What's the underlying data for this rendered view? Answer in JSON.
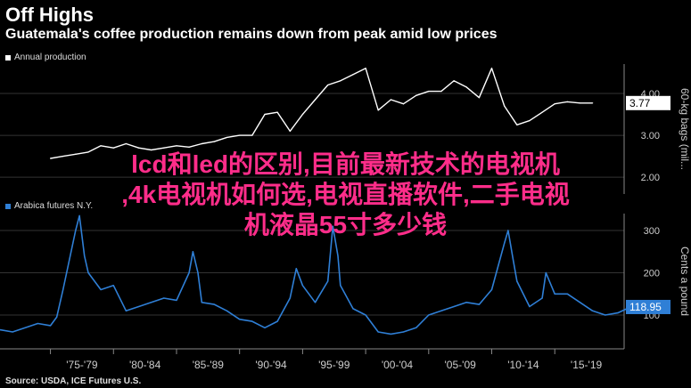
{
  "header": {
    "title": "Off Highs",
    "subtitle": "Guatemala's coffee production remains down from peak amid low prices"
  },
  "overlay": {
    "line1": "lcd和led的区别,目前最新技术的电视机",
    "line2": ",4k电视机如何选,电视直播软件,二手电视",
    "line3": "机液晶55寸多少钱"
  },
  "source": "Source: USDA, ICE Futures U.S.",
  "colors": {
    "top_line": "#ffffff",
    "bottom_line": "#2f7fd6",
    "grid": "#333333",
    "axis": "#888888",
    "overlay": "#ff2d8a"
  },
  "chart_data": [
    {
      "type": "line",
      "legend": "Annual production",
      "ylabel": "60-kg bags (mil...",
      "ylim": [
        1.6,
        4.7
      ],
      "yticks": [
        "2.00",
        "3.00",
        "4.00"
      ],
      "ytick_values": [
        2,
        3,
        4
      ],
      "last_value_label": "3.77",
      "x": [
        1975,
        1976,
        1977,
        1978,
        1979,
        1980,
        1981,
        1982,
        1983,
        1984,
        1985,
        1986,
        1987,
        1988,
        1989,
        1990,
        1991,
        1992,
        1993,
        1994,
        1995,
        1996,
        1997,
        1998,
        1999,
        2000,
        2001,
        2002,
        2003,
        2004,
        2005,
        2006,
        2007,
        2008,
        2009,
        2010,
        2011,
        2012,
        2013,
        2014,
        2015,
        2016,
        2017,
        2018
      ],
      "values": [
        2.45,
        2.5,
        2.55,
        2.6,
        2.75,
        2.7,
        2.8,
        2.7,
        2.65,
        2.7,
        2.75,
        2.72,
        2.8,
        2.85,
        2.95,
        3.0,
        3.0,
        3.5,
        3.55,
        3.1,
        3.5,
        3.85,
        4.2,
        4.3,
        4.45,
        4.6,
        3.6,
        3.85,
        3.75,
        3.95,
        4.05,
        4.05,
        4.3,
        4.15,
        3.9,
        4.6,
        3.7,
        3.25,
        3.35,
        3.55,
        3.75,
        3.8,
        3.77,
        3.77
      ]
    },
    {
      "type": "line",
      "legend": "Arabica futures N.Y.",
      "ylabel": "Cents a pound",
      "ylim": [
        20,
        340
      ],
      "yticks": [
        "100",
        "200",
        "300"
      ],
      "ytick_values": [
        100,
        200,
        300
      ],
      "last_value_label": "118.95",
      "xtick_labels": [
        "'75-'79",
        "'80-'84",
        "'85-'89",
        "'90-'94",
        "'95-'99",
        "'00-'04",
        "'05-'09",
        "'10-'14",
        "'15-'19"
      ],
      "x": [
        1971,
        1972,
        1973,
        1974,
        1975,
        1975.5,
        1976,
        1977,
        1977.3,
        1977.7,
        1978,
        1979,
        1980,
        1981,
        1982,
        1983,
        1984,
        1985,
        1986,
        1986.3,
        1986.7,
        1987,
        1988,
        1989,
        1990,
        1991,
        1992,
        1993,
        1994,
        1994.5,
        1995,
        1996,
        1997,
        1997.4,
        1997.8,
        1998,
        1999,
        2000,
        2001,
        2002,
        2003,
        2004,
        2005,
        2006,
        2007,
        2008,
        2009,
        2010,
        2011,
        2011.3,
        2011.7,
        2012,
        2013,
        2014,
        2014.3,
        2015,
        2016,
        2017,
        2018,
        2019,
        2020,
        2021
      ],
      "values": [
        65,
        60,
        70,
        80,
        75,
        95,
        160,
        300,
        335,
        240,
        200,
        160,
        170,
        110,
        120,
        130,
        140,
        135,
        200,
        250,
        200,
        130,
        125,
        110,
        90,
        85,
        70,
        85,
        140,
        210,
        170,
        130,
        180,
        310,
        240,
        170,
        115,
        100,
        60,
        55,
        60,
        70,
        100,
        110,
        120,
        130,
        125,
        160,
        270,
        300,
        230,
        180,
        120,
        140,
        200,
        150,
        150,
        130,
        110,
        100,
        105,
        119
      ]
    }
  ]
}
